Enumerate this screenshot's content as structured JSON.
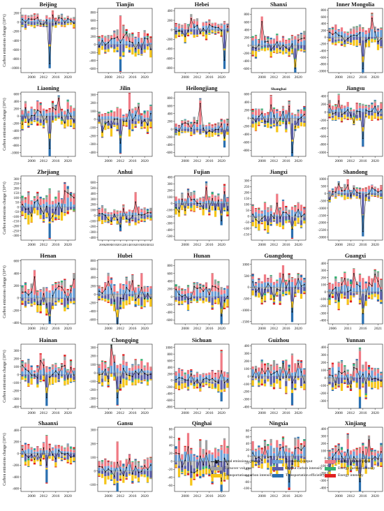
{
  "chart_data": {
    "type": "bar",
    "stacked": true,
    "ylabel": "Carbon emissions change (10⁴ t)",
    "components": [
      {
        "key": "total",
        "name": "Total emissions change",
        "color": "#222222",
        "kind": "line"
      },
      {
        "key": "econ",
        "name": "Economic output",
        "color": "#6a9fd8"
      },
      {
        "key": "econs",
        "name": "Energy consumption",
        "color": "#f07a84"
      },
      {
        "key": "turn",
        "name": "Turnover volume",
        "color": "#a0a0a0"
      },
      {
        "key": "outc",
        "name": "Output carbon intensity",
        "color": "#5b5ea8"
      },
      {
        "key": "enc",
        "name": "Energy carbon intensity",
        "color": "#33b070"
      },
      {
        "key": "trc",
        "name": "Transportation carbon intensity",
        "color": "#f5c518"
      },
      {
        "key": "tre",
        "name": "Transportation efficiency",
        "color": "#2a6fb0"
      },
      {
        "key": "eni",
        "name": "Energy intensity",
        "color": "#e02020"
      }
    ],
    "panels": [
      {
        "name": "Beijing",
        "ylim": [
          -1100,
          300
        ],
        "yticks": [
          200,
          0,
          -200,
          -400,
          -600,
          -800,
          -1000
        ],
        "years": [
          2005,
          2022
        ],
        "xticks": [
          2008,
          2012,
          2016,
          2020
        ],
        "peak_min": -950,
        "peak_max": 230,
        "seed": 1
      },
      {
        "name": "Tianjin",
        "ylim": [
          -700,
          900
        ],
        "yticks": [
          800,
          600,
          400,
          200,
          0,
          -200,
          -400,
          -600
        ],
        "years": [
          2005,
          2022
        ],
        "xticks": [
          2008,
          2012,
          2016,
          2020
        ],
        "peak_min": -600,
        "peak_max": 780,
        "seed": 2
      },
      {
        "name": "Hebei",
        "ylim": [
          -900,
          450
        ],
        "yticks": [
          400,
          200,
          0,
          -200,
          -400,
          -600,
          -800
        ],
        "years": [
          2005,
          2022
        ],
        "xticks": [
          2008,
          2012,
          2016,
          2020
        ],
        "peak_min": -780,
        "peak_max": 300,
        "seed": 3
      },
      {
        "name": "Shanxi",
        "ylim": [
          -700,
          950
        ],
        "yticks": [
          800,
          600,
          400,
          200,
          0,
          -200,
          -400,
          -600
        ],
        "years": [
          2005,
          2022
        ],
        "xticks": [
          2008,
          2012,
          2016,
          2020
        ],
        "peak_min": -520,
        "peak_max": 820,
        "seed": 4
      },
      {
        "name": "Inner Mongolia",
        "ylim": [
          -1050,
          850
        ],
        "yticks": [
          800,
          600,
          400,
          200,
          0,
          -200,
          -400,
          -600,
          -800,
          -1000
        ],
        "years": [
          2005,
          2022
        ],
        "xticks": [
          2008,
          2012,
          2016,
          2020
        ],
        "peak_min": -960,
        "peak_max": 520,
        "seed": 5
      },
      {
        "name": "Liaoning",
        "ylim": [
          -1100,
          650
        ],
        "yticks": [
          600,
          400,
          200,
          0,
          -200,
          -400,
          -600,
          -800,
          -1000
        ],
        "years": [
          2005,
          2022
        ],
        "xticks": [
          2008,
          2012,
          2016,
          2020
        ],
        "peak_min": -950,
        "peak_max": 560,
        "seed": 6
      },
      {
        "name": "Jilin",
        "ylim": [
          -450,
          330
        ],
        "yticks": [
          300,
          200,
          100,
          0,
          -100,
          -200,
          -300,
          -400
        ],
        "years": [
          2005,
          2022
        ],
        "xticks": [
          2008,
          2012,
          2016,
          2020
        ],
        "peak_min": -370,
        "peak_max": 280,
        "seed": 7
      },
      {
        "name": "Heilongjiang",
        "ylim": [
          -700,
          950
        ],
        "yticks": [
          800,
          600,
          400,
          200,
          0,
          -200,
          -400,
          -600
        ],
        "years": [
          2005,
          2022
        ],
        "xticks": [
          2008,
          2012,
          2016,
          2020
        ],
        "peak_min": -350,
        "peak_max": 820,
        "seed": 8
      },
      {
        "name": "Shanghai",
        "ylim": [
          -950,
          650
        ],
        "yticks": [
          600,
          400,
          200,
          0,
          -200,
          -400,
          -600,
          -800
        ],
        "years": [
          2005,
          2022
        ],
        "xticks": [
          2008,
          2012,
          2016,
          2020
        ],
        "peak_min": -820,
        "peak_max": 500,
        "seed": 9
      },
      {
        "name": "Jiangsu",
        "ylim": [
          -1100,
          500
        ],
        "yticks": [
          400,
          200,
          0,
          -200,
          -400,
          -600,
          -800,
          -1000
        ],
        "years": [
          2005,
          2022
        ],
        "xticks": [
          2008,
          2012,
          2016,
          2020
        ],
        "peak_min": -750,
        "peak_max": 430,
        "seed": 10
      },
      {
        "name": "Zhejiang",
        "ylim": [
          -350,
          330
        ],
        "yticks": [
          300,
          250,
          200,
          150,
          100,
          50,
          0,
          -50,
          -100,
          -150,
          -200,
          -250,
          -300
        ],
        "years": [
          2005,
          2022
        ],
        "xticks": [
          2008,
          2012,
          2016,
          2020
        ],
        "peak_min": -310,
        "peak_max": 280,
        "seed": 11
      },
      {
        "name": "Anhui",
        "ylim": [
          -450,
          720
        ],
        "yticks": [
          600,
          500,
          400,
          300,
          200,
          100,
          0,
          -100,
          -200,
          -300,
          -400
        ],
        "years": [
          2005,
          2022
        ],
        "xticks": [
          2006,
          2008,
          2010,
          2012,
          2014,
          2016,
          2018,
          2020,
          2022
        ],
        "peak_min": -250,
        "peak_max": 480,
        "seed": 12
      },
      {
        "name": "Fujian",
        "ylim": [
          -560,
          420
        ],
        "yticks": [
          400,
          300,
          200,
          100,
          0,
          -100,
          -200,
          -300,
          -400,
          -500
        ],
        "years": [
          2005,
          2022
        ],
        "xticks": [
          2008,
          2012,
          2016,
          2020
        ],
        "peak_min": -300,
        "peak_max": 310,
        "seed": 13
      },
      {
        "name": "Jiangxi",
        "ylim": [
          -200,
          340
        ],
        "yticks": [
          300,
          250,
          200,
          150,
          100,
          50,
          0,
          -50,
          -100,
          -150
        ],
        "years": [
          2005,
          2022
        ],
        "xticks": [
          2008,
          2012,
          2016,
          2020
        ],
        "peak_min": -150,
        "peak_max": 230,
        "seed": 14
      },
      {
        "name": "Shandong",
        "ylim": [
          -3200,
          1200
        ],
        "yticks": [
          1000,
          500,
          0,
          -500,
          -1000,
          -1500,
          -2000,
          -2500,
          -3000
        ],
        "years": [
          2005,
          2022
        ],
        "xticks": [
          2008,
          2012,
          2016,
          2020
        ],
        "peak_min": -2900,
        "peak_max": 900,
        "seed": 15
      },
      {
        "name": "Henan",
        "ylim": [
          -420,
          620
        ],
        "yticks": [
          600,
          400,
          200,
          0,
          -200,
          -400
        ],
        "years": [
          2005,
          2022
        ],
        "xticks": [
          2008,
          2012,
          2016,
          2020
        ],
        "peak_min": -380,
        "peak_max": 530,
        "seed": 16
      },
      {
        "name": "Hubei",
        "ylim": [
          -700,
          820
        ],
        "yticks": [
          800,
          600,
          400,
          200,
          0,
          -200,
          -400,
          -600
        ],
        "years": [
          2005,
          2022
        ],
        "xticks": [
          2008,
          2012,
          2016,
          2020
        ],
        "peak_min": -600,
        "peak_max": 580,
        "seed": 17
      },
      {
        "name": "Hunan",
        "ylim": [
          -700,
          950
        ],
        "yticks": [
          800,
          600,
          400,
          200,
          0,
          -200,
          -400,
          -600
        ],
        "years": [
          2005,
          2022
        ],
        "xticks": [
          2008,
          2012,
          2016,
          2020
        ],
        "peak_min": -560,
        "peak_max": 620,
        "seed": 18
      },
      {
        "name": "Guangdong",
        "ylim": [
          -1600,
          1200
        ],
        "yticks": [
          1000,
          500,
          0,
          -500,
          -1000,
          -1500
        ],
        "years": [
          2005,
          2022
        ],
        "xticks": [
          2008,
          2012,
          2016,
          2020
        ],
        "peak_min": -1250,
        "peak_max": 1000,
        "seed": 19
      },
      {
        "name": "Guangxi",
        "ylim": [
          -450,
          450
        ],
        "yticks": [
          400,
          300,
          200,
          100,
          0,
          -100,
          -200,
          -300,
          -400
        ],
        "years": [
          2005,
          2022
        ],
        "xticks": [
          2006,
          2011,
          2016,
          2021
        ],
        "peak_min": -400,
        "peak_max": 360,
        "seed": 20
      },
      {
        "name": "Hainan",
        "ylim": [
          -420,
          380
        ],
        "yticks": [
          300,
          200,
          100,
          0,
          -100,
          -200,
          -300,
          -400
        ],
        "years": [
          2005,
          2022
        ],
        "xticks": [
          2008,
          2012,
          2016,
          2020
        ],
        "peak_min": -320,
        "peak_max": 260,
        "seed": 21
      },
      {
        "name": "Chongqing",
        "ylim": [
          -420,
          340
        ],
        "yticks": [
          300,
          200,
          100,
          0,
          -100,
          -200,
          -300,
          -400
        ],
        "years": [
          2005,
          2022
        ],
        "xticks": [
          2008,
          2012,
          2016,
          2020
        ],
        "peak_min": -300,
        "peak_max": 270,
        "seed": 22
      },
      {
        "name": "Sichuan",
        "ylim": [
          -850,
          1100
        ],
        "yticks": [
          1000,
          800,
          600,
          400,
          200,
          0,
          -200,
          -400,
          -600,
          -800
        ],
        "years": [
          2005,
          2022
        ],
        "xticks": [
          2008,
          2012,
          2016,
          2020
        ],
        "peak_min": -560,
        "peak_max": 860,
        "seed": 23
      },
      {
        "name": "Guizhou",
        "ylim": [
          -420,
          420
        ],
        "yticks": [
          400,
          300,
          200,
          100,
          0,
          -100,
          -200,
          -300,
          -400
        ],
        "years": [
          2005,
          2022
        ],
        "xticks": [
          2008,
          2012,
          2016,
          2020
        ],
        "peak_min": -320,
        "peak_max": 300,
        "seed": 24
      },
      {
        "name": "Yunnan",
        "ylim": [
          -400,
          440
        ],
        "yticks": [
          400,
          300,
          200,
          100,
          0,
          -100,
          -200,
          -300
        ],
        "years": [
          2005,
          2022
        ],
        "xticks": [
          2008,
          2012,
          2016,
          2020
        ],
        "peak_min": -300,
        "peak_max": 340,
        "seed": 25
      },
      {
        "name": "Shaanxi",
        "ylim": [
          -650,
          450
        ],
        "yticks": [
          400,
          200,
          0,
          -200,
          -400,
          -600
        ],
        "years": [
          2005,
          2022
        ],
        "xticks": [
          2008,
          2012,
          2016,
          2020
        ],
        "peak_min": -450,
        "peak_max": 330,
        "seed": 26
      },
      {
        "name": "Gansu",
        "ylim": [
          -150,
          320
        ],
        "yticks": [
          300,
          200,
          100,
          0,
          -100
        ],
        "years": [
          2005,
          2022
        ],
        "xticks": [
          2008,
          2012,
          2016,
          2020
        ],
        "peak_min": -130,
        "peak_max": 250,
        "seed": 27
      },
      {
        "name": "Qinghai",
        "ylim": [
          -75,
          85
        ],
        "yticks": [
          80,
          60,
          40,
          20,
          0,
          -20,
          -40,
          -60
        ],
        "years": [
          2005,
          2022
        ],
        "xticks": [
          2008,
          2012,
          2016,
          2020
        ],
        "peak_min": -62,
        "peak_max": 70,
        "seed": 28
      },
      {
        "name": "Ningxia",
        "ylim": [
          -110,
          90
        ],
        "yticks": [
          80,
          60,
          40,
          20,
          0,
          -20,
          -40,
          -60,
          -80,
          -100
        ],
        "years": [
          2005,
          2022
        ],
        "xticks": [
          2008,
          2012,
          2016,
          2020
        ],
        "peak_min": -85,
        "peak_max": 60,
        "seed": 29
      },
      {
        "name": "Xinjiang",
        "ylim": [
          -450,
          420
        ],
        "yticks": [
          400,
          300,
          200,
          100,
          0,
          -100,
          -200,
          -300,
          -400
        ],
        "years": [
          2005,
          2022
        ],
        "xticks": [
          2008,
          2012,
          2016,
          2020
        ],
        "peak_min": -400,
        "peak_max": 300,
        "seed": 30
      }
    ]
  }
}
